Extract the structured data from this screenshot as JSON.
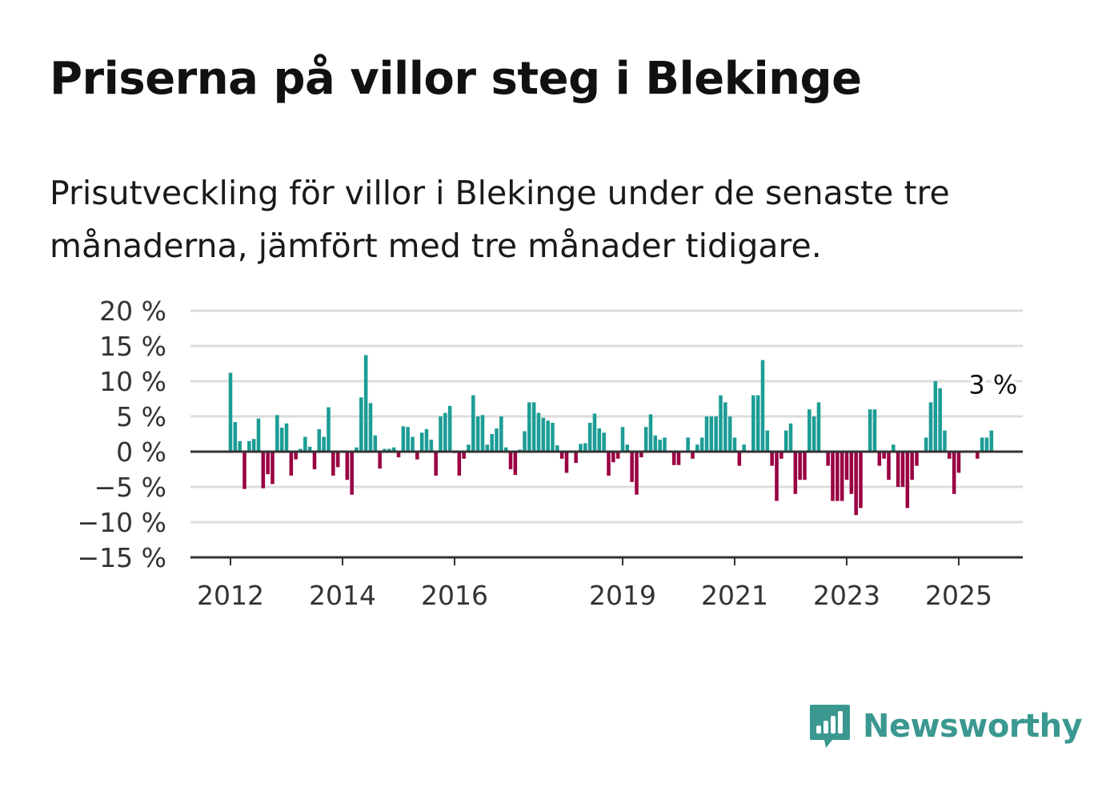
{
  "header": {
    "title": "Priserna på villor steg i Blekinge",
    "subtitle": "Prisutveckling för villor i Blekinge under de senaste tre månaderna, jämfört med tre månader tidigare."
  },
  "brand": {
    "name": "Newsworthy",
    "icon": "newsworthy-logo-icon",
    "color": "#3a9890"
  },
  "chart_data": {
    "type": "bar",
    "x_start": "2012-01",
    "interval": "month",
    "y_unit": "%",
    "ylim": [
      -15,
      20
    ],
    "yticks": [
      20,
      15,
      10,
      5,
      0,
      -5,
      -10,
      -15
    ],
    "ytick_labels": [
      "20 %",
      "15 %",
      "10 %",
      "5 %",
      "0 %",
      "−5 %",
      "−10 %",
      "−15 %"
    ],
    "xticks": [
      2012,
      2014,
      2016,
      2019,
      2021,
      2023,
      2025
    ],
    "xtick_labels": [
      "2012",
      "2014",
      "2016",
      "2019",
      "2021",
      "2023",
      "2025"
    ],
    "grid": true,
    "colors": {
      "positive": "#1c9d96",
      "negative": "#990042",
      "grid": "#dddddd",
      "axis": "#333333"
    },
    "end_label": "3 %",
    "values": [
      11.2,
      4.2,
      1.5,
      -5.3,
      1.5,
      1.8,
      4.7,
      -5.2,
      -3.2,
      -4.6,
      5.2,
      3.4,
      4.0,
      -3.4,
      -1.1,
      0.4,
      2.1,
      0.7,
      -2.5,
      3.2,
      2.1,
      6.3,
      -3.4,
      -2.2,
      0.0,
      -4.0,
      -6.1,
      0.6,
      7.7,
      13.7,
      6.9,
      2.3,
      -2.4,
      0.4,
      0.4,
      0.6,
      -0.8,
      3.6,
      3.5,
      2.1,
      -1.1,
      2.7,
      3.2,
      1.7,
      -3.4,
      5.0,
      5.5,
      6.5,
      -0.2,
      -3.4,
      -1.0,
      1.0,
      8.0,
      5.0,
      5.2,
      1.0,
      2.5,
      3.3,
      5.0,
      0.6,
      -2.5,
      -3.3,
      0.3,
      2.9,
      7.0,
      7.0,
      5.5,
      4.8,
      4.4,
      4.1,
      0.9,
      -1.0,
      -3.0,
      0.0,
      -1.6,
      1.1,
      1.2,
      4.1,
      5.4,
      3.3,
      2.7,
      -3.4,
      -1.5,
      -1.0,
      3.5,
      1.0,
      -4.3,
      -6.1,
      -0.8,
      3.5,
      5.3,
      2.3,
      1.7,
      2.0,
      0.0,
      -1.9,
      -1.9,
      0.0,
      2.0,
      -1.0,
      1.0,
      2.0,
      5.0,
      5.0,
      5.0,
      8.0,
      7.0,
      5.0,
      2.0,
      -2.0,
      1.0,
      0.0,
      8.0,
      8.0,
      13.0,
      3.0,
      -2.0,
      -7.0,
      -1.0,
      3.0,
      4.0,
      -6.0,
      -4.0,
      -4.0,
      6.0,
      5.0,
      7.0,
      0.0,
      -2.0,
      -7.0,
      -7.0,
      -7.0,
      -4.0,
      -6.0,
      -9.0,
      -8.0,
      0.0,
      6.0,
      6.0,
      -2.0,
      -1.0,
      -4.0,
      1.0,
      -5.0,
      -5.0,
      -8.0,
      -4.0,
      -2.0,
      0.0,
      2.0,
      7.0,
      10.0,
      9.0,
      3.0,
      -1.0,
      -6.0,
      -3.0,
      0.0,
      0.0,
      0.0,
      -1.0,
      2.0,
      2.0,
      3.0
    ]
  }
}
